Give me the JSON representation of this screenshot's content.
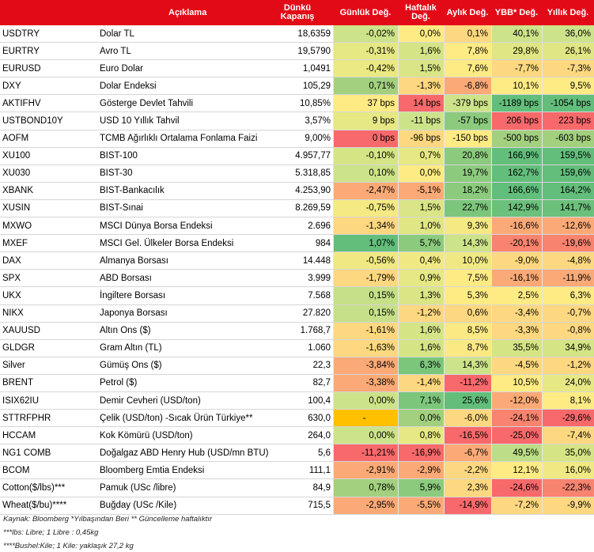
{
  "headers": [
    "Açıklama",
    "Dünkü Kapanış",
    "Günlük Değ.",
    "Haftalık Değ.",
    "Aylık Değ.",
    "YBB* Değ.",
    "Yıllık Değ."
  ],
  "colors": {
    "header_bg": "#e30a17",
    "strong_green": "#63be7b",
    "mid_green": "#a2d07f",
    "light_green": "#cde38a",
    "yellow": "#ffeb84",
    "light_orange": "#fed880",
    "orange": "#fbaa77",
    "red": "#f8696b",
    "gold": "#ffc000"
  },
  "rows": [
    {
      "code": "USDTRY",
      "desc": "Dolar TL",
      "close": "18,6359",
      "vals": [
        {
          "t": "-0,02%",
          "c": "#cde38a"
        },
        {
          "t": "0,0%",
          "c": "#ffeb84"
        },
        {
          "t": "0,1%",
          "c": "#fed880"
        },
        {
          "t": "40,1%",
          "c": "#cde38a"
        },
        {
          "t": "36,0%",
          "c": "#cde38a"
        }
      ]
    },
    {
      "code": "EURTRY",
      "desc": "Avro TL",
      "close": "19,5790",
      "vals": [
        {
          "t": "-0,31%",
          "c": "#e6e884"
        },
        {
          "t": "1,6%",
          "c": "#d5e586"
        },
        {
          "t": "7,8%",
          "c": "#ffeb84"
        },
        {
          "t": "29,8%",
          "c": "#e0e684"
        },
        {
          "t": "26,1%",
          "c": "#e0e684"
        }
      ]
    },
    {
      "code": "EURUSD",
      "desc": "Euro Dolar",
      "close": "1,0491",
      "vals": [
        {
          "t": "-0,42%",
          "c": "#ebe983"
        },
        {
          "t": "1,5%",
          "c": "#d9e586"
        },
        {
          "t": "7,6%",
          "c": "#ffeb84"
        },
        {
          "t": "-7,7%",
          "c": "#fed880"
        },
        {
          "t": "-7,3%",
          "c": "#fed880"
        }
      ]
    },
    {
      "code": "DXY",
      "desc": "Dolar Endeksi",
      "close": "105,29",
      "vals": [
        {
          "t": "0,71%",
          "c": "#a2d07f"
        },
        {
          "t": "-1,3%",
          "c": "#fed880"
        },
        {
          "t": "-6,8%",
          "c": "#fbaa77"
        },
        {
          "t": "10,1%",
          "c": "#ffeb84"
        },
        {
          "t": "9,5%",
          "c": "#ffeb84"
        }
      ]
    },
    {
      "code": "AKTIFHV",
      "desc": "Gösterge Devlet Tahvili",
      "close": "10,85%",
      "vals": [
        {
          "t": "37 bps",
          "c": "#ffeb84"
        },
        {
          "t": "14 bps",
          "c": "#f8696b"
        },
        {
          "t": "-379 bps",
          "c": "#cde38a"
        },
        {
          "t": "-1189 bps",
          "c": "#63be7b"
        },
        {
          "t": "-1054 bps",
          "c": "#63be7b"
        }
      ]
    },
    {
      "code": "USTBOND10Y",
      "desc": "USD 10 Yıllık Tahvil",
      "close": "3,57%",
      "vals": [
        {
          "t": "9 bps",
          "c": "#e6e884"
        },
        {
          "t": "-11 bps",
          "c": "#cde38a"
        },
        {
          "t": "-57 bps",
          "c": "#8ccb7e"
        },
        {
          "t": "206 bps",
          "c": "#f8696b"
        },
        {
          "t": "223 bps",
          "c": "#f8696b"
        }
      ]
    },
    {
      "code": "AOFM",
      "desc": "TCMB Ağırlıklı Ortalama Fonlama Faizi",
      "close": "9,00%",
      "vals": [
        {
          "t": "0 bps",
          "c": "#f8696b"
        },
        {
          "t": "-96 bps",
          "c": "#fed880"
        },
        {
          "t": "-150 bps",
          "c": "#ffeb84"
        },
        {
          "t": "-500 bps",
          "c": "#a2d07f"
        },
        {
          "t": "-603 bps",
          "c": "#a2d07f"
        }
      ]
    },
    {
      "code": "XU100",
      "desc": "BIST-100",
      "close": "4.957,77",
      "vals": [
        {
          "t": "-0,10%",
          "c": "#d5e586"
        },
        {
          "t": "0,7%",
          "c": "#e6e884"
        },
        {
          "t": "20,8%",
          "c": "#8ccb7e"
        },
        {
          "t": "166,9%",
          "c": "#63be7b"
        },
        {
          "t": "159,5%",
          "c": "#63be7b"
        }
      ]
    },
    {
      "code": "XU030",
      "desc": "BIST-30",
      "close": "5.318,85",
      "vals": [
        {
          "t": "0,10%",
          "c": "#cde38a"
        },
        {
          "t": "0,0%",
          "c": "#ffeb84"
        },
        {
          "t": "19,7%",
          "c": "#8ccb7e"
        },
        {
          "t": "162,7%",
          "c": "#63be7b"
        },
        {
          "t": "159,6%",
          "c": "#63be7b"
        }
      ]
    },
    {
      "code": "XBANK",
      "desc": "BIST-Bankacılık",
      "close": "4.253,90",
      "vals": [
        {
          "t": "-2,47%",
          "c": "#fbaa77"
        },
        {
          "t": "-5,1%",
          "c": "#fbaa77"
        },
        {
          "t": "18,2%",
          "c": "#8ccb7e"
        },
        {
          "t": "166,6%",
          "c": "#63be7b"
        },
        {
          "t": "164,2%",
          "c": "#63be7b"
        }
      ]
    },
    {
      "code": "XUSIN",
      "desc": "BIST-Sınai",
      "close": "8.269,59",
      "vals": [
        {
          "t": "-0,75%",
          "c": "#f4e983"
        },
        {
          "t": "1,5%",
          "c": "#d9e586"
        },
        {
          "t": "22,7%",
          "c": "#7cc67c"
        },
        {
          "t": "142,9%",
          "c": "#6bc07b"
        },
        {
          "t": "141,7%",
          "c": "#6bc07b"
        }
      ]
    },
    {
      "code": "MXWO",
      "desc": "MSCI Dünya Borsa Endeksi",
      "close": "2.696",
      "vals": [
        {
          "t": "-1,34%",
          "c": "#fed880"
        },
        {
          "t": "1,0%",
          "c": "#e0e684"
        },
        {
          "t": "9,3%",
          "c": "#f4e983"
        },
        {
          "t": "-16,6%",
          "c": "#fbaa77"
        },
        {
          "t": "-12,6%",
          "c": "#fbaa77"
        }
      ]
    },
    {
      "code": "MXEF",
      "desc": "MSCI Gel. Ülkeler Borsa Endeksi",
      "close": "984",
      "vals": [
        {
          "t": "1,07%",
          "c": "#63be7b"
        },
        {
          "t": "5,7%",
          "c": "#8ccb7e"
        },
        {
          "t": "14,3%",
          "c": "#cde38a"
        },
        {
          "t": "-20,1%",
          "c": "#f8836f"
        },
        {
          "t": "-19,6%",
          "c": "#f8836f"
        }
      ]
    },
    {
      "code": "DAX",
      "desc": "Almanya Borsası",
      "close": "14.448",
      "vals": [
        {
          "t": "-0,56%",
          "c": "#f0e983"
        },
        {
          "t": "0,4%",
          "c": "#f0e983"
        },
        {
          "t": "10,0%",
          "c": "#f0e983"
        },
        {
          "t": "-9,0%",
          "c": "#fed880"
        },
        {
          "t": "-4,8%",
          "c": "#fed880"
        }
      ]
    },
    {
      "code": "SPX",
      "desc": "ABD Borsası",
      "close": "3.999",
      "vals": [
        {
          "t": "-1,79%",
          "c": "#fed880"
        },
        {
          "t": "0,9%",
          "c": "#e6e884"
        },
        {
          "t": "7,5%",
          "c": "#ffeb84"
        },
        {
          "t": "-16,1%",
          "c": "#fbaa77"
        },
        {
          "t": "-11,9%",
          "c": "#fbaa77"
        }
      ]
    },
    {
      "code": "UKX",
      "desc": "İngiltere Borsası",
      "close": "7.568",
      "vals": [
        {
          "t": "0,15%",
          "c": "#c5e088"
        },
        {
          "t": "1,3%",
          "c": "#dbe585"
        },
        {
          "t": "5,3%",
          "c": "#ffeb84"
        },
        {
          "t": "2,5%",
          "c": "#ffeb84"
        },
        {
          "t": "6,3%",
          "c": "#ffeb84"
        }
      ]
    },
    {
      "code": "NIKX",
      "desc": "Japonya Borsası",
      "close": "27.820",
      "vals": [
        {
          "t": "0,15%",
          "c": "#c5e088"
        },
        {
          "t": "-1,2%",
          "c": "#fed880"
        },
        {
          "t": "0,6%",
          "c": "#fed880"
        },
        {
          "t": "-3,4%",
          "c": "#fed880"
        },
        {
          "t": "-0,7%",
          "c": "#fed880"
        }
      ]
    },
    {
      "code": "XAUUSD",
      "desc": "Altın Ons ($)",
      "close": "1.768,7",
      "vals": [
        {
          "t": "-1,61%",
          "c": "#fed880"
        },
        {
          "t": "1,6%",
          "c": "#d5e586"
        },
        {
          "t": "8,5%",
          "c": "#fbe983"
        },
        {
          "t": "-3,3%",
          "c": "#fed880"
        },
        {
          "t": "-0,8%",
          "c": "#fed880"
        }
      ]
    },
    {
      "code": "GLDGR",
      "desc": "Gram Altın (TL)",
      "close": "1.060",
      "vals": [
        {
          "t": "-1,63%",
          "c": "#fed880"
        },
        {
          "t": "1,6%",
          "c": "#d5e586"
        },
        {
          "t": "8,7%",
          "c": "#fbe983"
        },
        {
          "t": "35,5%",
          "c": "#d5e586"
        },
        {
          "t": "34,9%",
          "c": "#d5e586"
        }
      ]
    },
    {
      "code": "Silver",
      "desc": "Gümüş Ons ($)",
      "close": "22,3",
      "vals": [
        {
          "t": "-3,84%",
          "c": "#fbaa77"
        },
        {
          "t": "6,3%",
          "c": "#7cc67c"
        },
        {
          "t": "14,3%",
          "c": "#cde38a"
        },
        {
          "t": "-4,5%",
          "c": "#fed880"
        },
        {
          "t": "-1,2%",
          "c": "#fed880"
        }
      ]
    },
    {
      "code": "BRENT",
      "desc": "Petrol ($)",
      "close": "82,7",
      "vals": [
        {
          "t": "-3,38%",
          "c": "#fbaa77"
        },
        {
          "t": "-1,4%",
          "c": "#fed880"
        },
        {
          "t": "-11,2%",
          "c": "#f8696b"
        },
        {
          "t": "10,5%",
          "c": "#ffeb84"
        },
        {
          "t": "24,0%",
          "c": "#e6e884"
        }
      ]
    },
    {
      "code": "ISIX62IU",
      "desc": "Demir Cevheri (USD/ton)",
      "close": "100,4",
      "vals": [
        {
          "t": "0,00%",
          "c": "#cde38a"
        },
        {
          "t": "7,1%",
          "c": "#7cc67c"
        },
        {
          "t": "25,6%",
          "c": "#63be7b"
        },
        {
          "t": "-12,0%",
          "c": "#fbaa77"
        },
        {
          "t": "8,1%",
          "c": "#ffeb84"
        }
      ]
    },
    {
      "code": "STTRFPHR",
      "desc": "Çelik (USD/ton) -Sıcak Ürün Türkiye**",
      "close": "630,0",
      "vals": [
        {
          "t": "-",
          "c": "#ffc000"
        },
        {
          "t": "0,0%",
          "c": "#a2d07f"
        },
        {
          "t": "-6,0%",
          "c": "#fed880"
        },
        {
          "t": "-24,1%",
          "c": "#f8836f"
        },
        {
          "t": "-29,6%",
          "c": "#f8696b"
        }
      ]
    },
    {
      "code": "HCCAM",
      "desc": "Kok Kömürü (USD/ton)",
      "close": "264,0",
      "vals": [
        {
          "t": "0,00%",
          "c": "#cde38a"
        },
        {
          "t": "0,8%",
          "c": "#e6e884"
        },
        {
          "t": "-16,5%",
          "c": "#f8696b"
        },
        {
          "t": "-25,0%",
          "c": "#f8696b"
        },
        {
          "t": "-7,4%",
          "c": "#fed880"
        }
      ]
    },
    {
      "code": "NG1 COMB",
      "desc": "Doğalgaz ABD Henry Hub (USD/mn BTU)",
      "close": "5,6",
      "vals": [
        {
          "t": "-11,21%",
          "c": "#f8696b"
        },
        {
          "t": "-16,9%",
          "c": "#f8696b"
        },
        {
          "t": "-6,7%",
          "c": "#fbaa77"
        },
        {
          "t": "49,5%",
          "c": "#bddd88"
        },
        {
          "t": "35,0%",
          "c": "#d5e586"
        }
      ]
    },
    {
      "code": "BCOM",
      "desc": "Bloomberg Emtia Endeksi",
      "close": "111,1",
      "vals": [
        {
          "t": "-2,91%",
          "c": "#fbaa77"
        },
        {
          "t": "-2,9%",
          "c": "#fbaa77"
        },
        {
          "t": "-2,2%",
          "c": "#fed880"
        },
        {
          "t": "12,1%",
          "c": "#ffeb84"
        },
        {
          "t": "16,0%",
          "c": "#f0e983"
        }
      ]
    },
    {
      "code": "Cotton($/lbs)***",
      "desc": "Pamuk (USc /libre)",
      "close": "84,9",
      "vals": [
        {
          "t": "0,78%",
          "c": "#a2d07f"
        },
        {
          "t": "5,9%",
          "c": "#8ccb7e"
        },
        {
          "t": "2,3%",
          "c": "#fed880"
        },
        {
          "t": "-24,6%",
          "c": "#f8696b"
        },
        {
          "t": "-22,3%",
          "c": "#f8836f"
        }
      ]
    },
    {
      "code": "Wheat($/bu)****",
      "desc": "Buğday (USc /Kile)",
      "close": "715,5",
      "vals": [
        {
          "t": "-2,95%",
          "c": "#fbaa77"
        },
        {
          "t": "-5,5%",
          "c": "#fbaa77"
        },
        {
          "t": "-14,9%",
          "c": "#f8696b"
        },
        {
          "t": "-7,2%",
          "c": "#fed880"
        },
        {
          "t": "-9,9%",
          "c": "#fed880"
        }
      ]
    }
  ],
  "footnotes": [
    "Kaynak: Bloomberg *Yılbaşından Beri  ** Güncelleme haftalıktır",
    "***lbs: Libre; 1 Libre : 0,45kg",
    "****Bushel:Kile; 1 Kile: yaklaşık 27,2 kg"
  ]
}
